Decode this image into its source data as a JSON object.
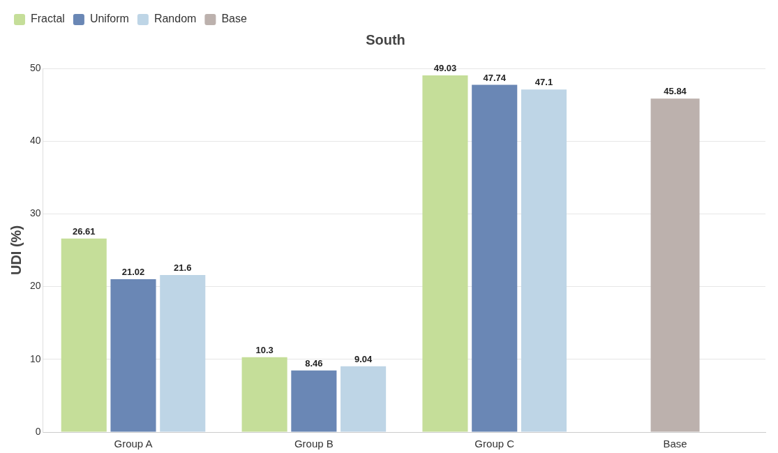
{
  "chart_data": {
    "type": "bar",
    "title": "South",
    "ylabel": "UDI (%)",
    "categories": [
      "Group A",
      "Group B",
      "Group C",
      "Base"
    ],
    "series": [
      {
        "name": "Fractal",
        "color": "#c5de99",
        "values": [
          26.61,
          10.3,
          49.03,
          null
        ]
      },
      {
        "name": "Uniform",
        "color": "#6a87b5",
        "values": [
          21.02,
          8.46,
          47.74,
          null
        ]
      },
      {
        "name": "Random",
        "color": "#bed5e6",
        "values": [
          21.6,
          9.04,
          47.1,
          null
        ]
      },
      {
        "name": "Base",
        "color": "#bcb1ad",
        "values": [
          null,
          null,
          null,
          45.84
        ]
      }
    ],
    "ylim": [
      0,
      50
    ],
    "yticks": [
      0,
      10,
      20,
      30,
      40,
      50
    ],
    "grid": "y",
    "legend": "top left",
    "data_labels": true
  }
}
